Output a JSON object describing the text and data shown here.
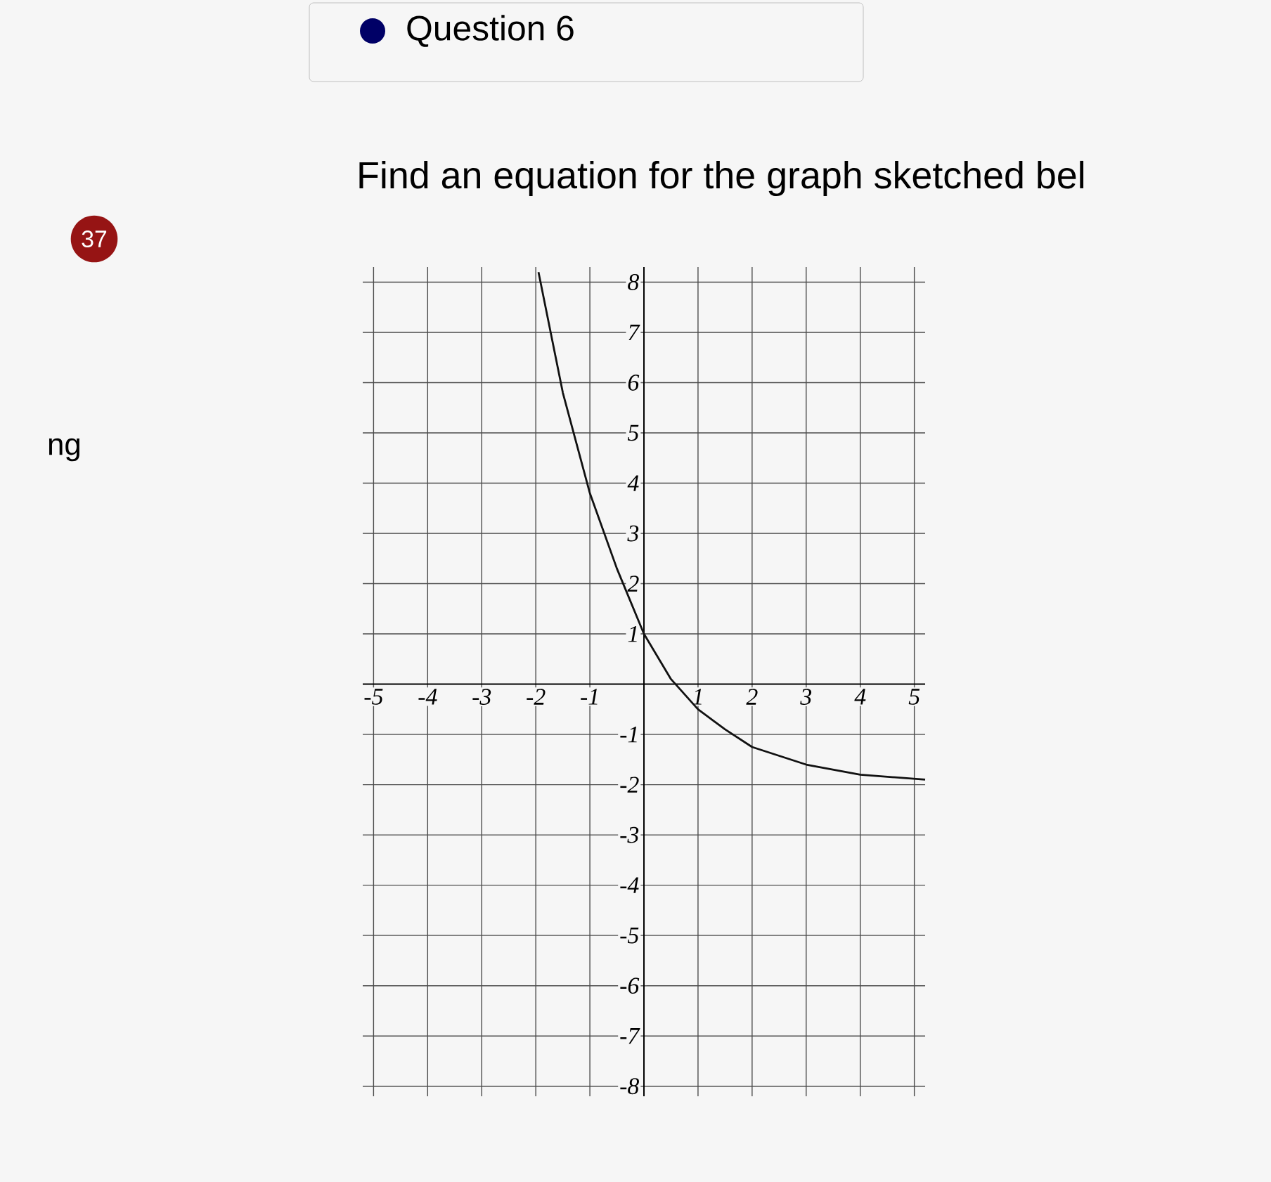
{
  "chart_data": {
    "type": "line",
    "title": "Find an equation for the graph sketched bel",
    "annotations": [
      "Question 6",
      "37",
      "ng"
    ],
    "x": [
      -1.95,
      -1.5,
      -1,
      -0.5,
      0,
      0.5,
      1,
      1.5,
      2,
      3,
      4,
      5.2
    ],
    "series": [
      {
        "color": "#111111",
        "values": [
          8.2,
          5.8,
          3.8,
          2.3,
          1,
          0.1,
          -0.5,
          -0.9,
          -1.25,
          -1.6,
          -1.8,
          -1.9
        ]
      }
    ],
    "xlim": [
      -5.2,
      5.2
    ],
    "ylim": [
      -8.2,
      8.3
    ],
    "xticks": [
      -5,
      -4,
      -3,
      -2,
      -1,
      1,
      2,
      3,
      4,
      5
    ],
    "yticks": [
      -8,
      -7,
      -6,
      -5,
      -4,
      -3,
      -2,
      -1,
      1,
      2,
      3,
      4,
      5,
      6,
      7,
      8
    ],
    "grid": true,
    "line_style": "solid"
  }
}
